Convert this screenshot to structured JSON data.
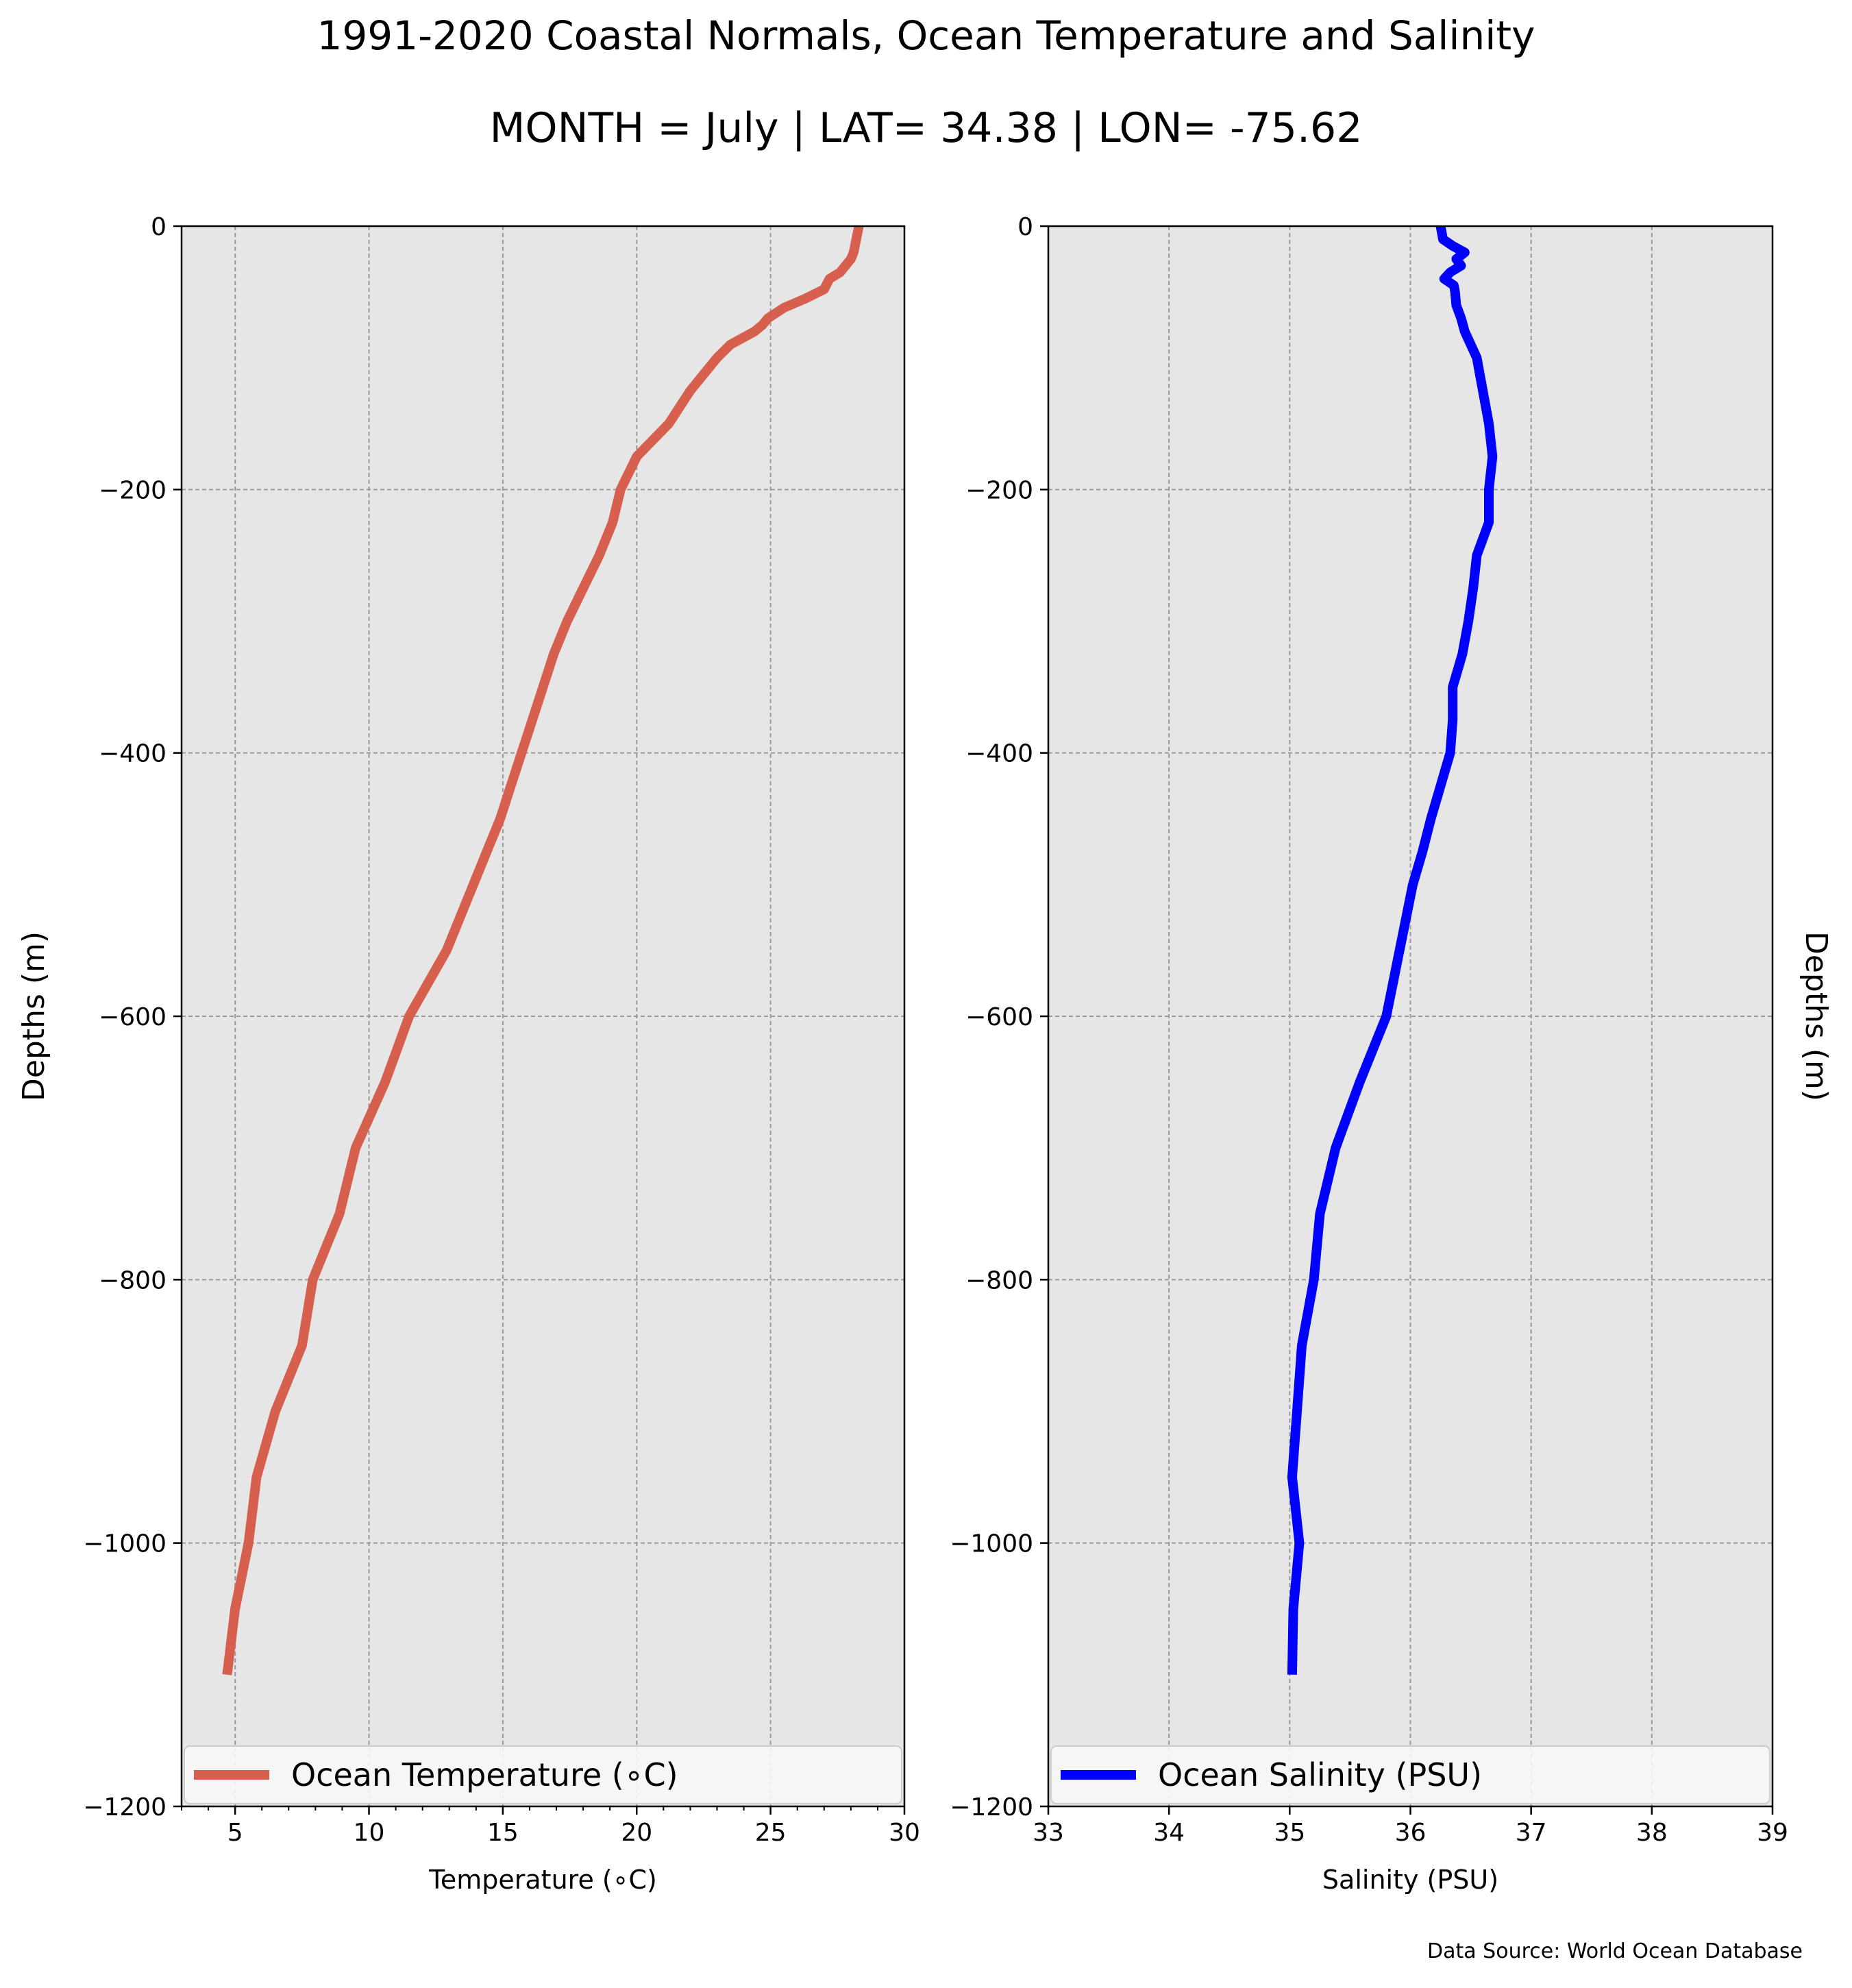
{
  "title": "1991-2020 Coastal Normals, Ocean Temperature and Salinity",
  "subtitle": "MONTH = July | LAT= 34.38 | LON= -75.62",
  "source_note": "Data Source: World Ocean Database",
  "chart_data": [
    {
      "type": "line",
      "xlabel": "Temperature (∘C)",
      "ylabel": "Depths (m)",
      "xlim": [
        3,
        30
      ],
      "ylim": [
        -1200,
        0
      ],
      "xticks": [
        5,
        10,
        15,
        20,
        25,
        30
      ],
      "yticks": [
        0,
        -200,
        -400,
        -600,
        -800,
        -1000,
        -1200
      ],
      "ytick_labels": [
        "0",
        "−200",
        "−400",
        "−600",
        "−800",
        "−1000",
        "−1200"
      ],
      "grid": true,
      "legend_position": "bottom",
      "color": "#d65f4e",
      "background": "#e6e6e6",
      "series": [
        {
          "name": "Ocean Temperature (∘C)",
          "points": [
            [
              28.3,
              0
            ],
            [
              28.2,
              -10
            ],
            [
              28.1,
              -20
            ],
            [
              28.0,
              -25
            ],
            [
              27.6,
              -35
            ],
            [
              27.2,
              -40
            ],
            [
              27.0,
              -48
            ],
            [
              26.3,
              -55
            ],
            [
              25.5,
              -62
            ],
            [
              24.9,
              -70
            ],
            [
              24.7,
              -75
            ],
            [
              24.4,
              -80
            ],
            [
              23.5,
              -90
            ],
            [
              23.0,
              -100
            ],
            [
              22.0,
              -125
            ],
            [
              21.2,
              -150
            ],
            [
              20.0,
              -175
            ],
            [
              19.4,
              -200
            ],
            [
              19.1,
              -225
            ],
            [
              18.6,
              -250
            ],
            [
              18.0,
              -275
            ],
            [
              17.4,
              -300
            ],
            [
              16.9,
              -325
            ],
            [
              16.5,
              -350
            ],
            [
              16.1,
              -375
            ],
            [
              15.7,
              -400
            ],
            [
              15.3,
              -425
            ],
            [
              14.9,
              -450
            ],
            [
              14.4,
              -475
            ],
            [
              13.9,
              -500
            ],
            [
              12.9,
              -550
            ],
            [
              11.5,
              -600
            ],
            [
              10.6,
              -650
            ],
            [
              9.5,
              -700
            ],
            [
              8.9,
              -750
            ],
            [
              7.9,
              -800
            ],
            [
              7.5,
              -850
            ],
            [
              6.5,
              -900
            ],
            [
              5.8,
              -950
            ],
            [
              5.5,
              -1000
            ],
            [
              5.0,
              -1050
            ],
            [
              4.7,
              -1100
            ]
          ]
        }
      ]
    },
    {
      "type": "line",
      "xlabel": "Salinity (PSU)",
      "ylabel": "Depths (m)",
      "xlim": [
        33,
        39
      ],
      "ylim": [
        -1200,
        0
      ],
      "xticks": [
        33,
        34,
        35,
        36,
        37,
        38,
        39
      ],
      "yticks": [
        0,
        -200,
        -400,
        -600,
        -800,
        -1000,
        -1200
      ],
      "ytick_labels": [
        "0",
        "−200",
        "−400",
        "−600",
        "−800",
        "−1000",
        "−1200"
      ],
      "grid": true,
      "legend_position": "bottom",
      "color": "#0000ff",
      "background": "#e6e6e6",
      "series": [
        {
          "name": "Ocean Salinity (PSU)",
          "points": [
            [
              36.25,
              0
            ],
            [
              36.27,
              -10
            ],
            [
              36.35,
              -15
            ],
            [
              36.45,
              -20
            ],
            [
              36.38,
              -25
            ],
            [
              36.42,
              -30
            ],
            [
              36.33,
              -35
            ],
            [
              36.28,
              -40
            ],
            [
              36.36,
              -45
            ],
            [
              36.37,
              -50
            ],
            [
              36.38,
              -60
            ],
            [
              36.42,
              -70
            ],
            [
              36.45,
              -80
            ],
            [
              36.55,
              -100
            ],
            [
              36.65,
              -150
            ],
            [
              36.68,
              -175
            ],
            [
              36.65,
              -200
            ],
            [
              36.65,
              -225
            ],
            [
              36.55,
              -250
            ],
            [
              36.52,
              -275
            ],
            [
              36.48,
              -300
            ],
            [
              36.43,
              -325
            ],
            [
              36.35,
              -350
            ],
            [
              36.35,
              -375
            ],
            [
              36.33,
              -400
            ],
            [
              36.25,
              -425
            ],
            [
              36.17,
              -450
            ],
            [
              36.1,
              -475
            ],
            [
              36.02,
              -500
            ],
            [
              35.8,
              -600
            ],
            [
              35.58,
              -650
            ],
            [
              35.38,
              -700
            ],
            [
              35.25,
              -750
            ],
            [
              35.2,
              -800
            ],
            [
              35.1,
              -850
            ],
            [
              35.02,
              -950
            ],
            [
              35.08,
              -1000
            ],
            [
              35.03,
              -1050
            ],
            [
              35.02,
              -1100
            ]
          ]
        }
      ]
    }
  ]
}
